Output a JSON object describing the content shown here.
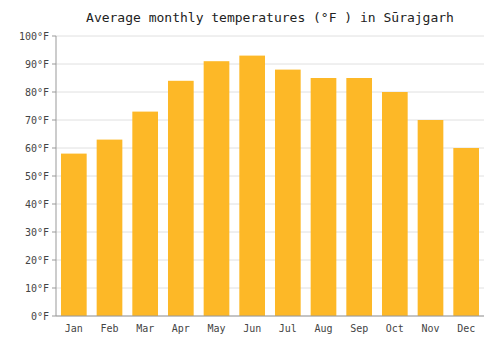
{
  "chart_data": {
    "type": "bar",
    "title": "Average monthly temperatures (°F ) in Sūrajgarh",
    "categories": [
      "Jan",
      "Feb",
      "Mar",
      "Apr",
      "May",
      "Jun",
      "Jul",
      "Aug",
      "Sep",
      "Oct",
      "Nov",
      "Dec"
    ],
    "values": [
      58,
      63,
      73,
      84,
      91,
      93,
      88,
      85,
      85,
      80,
      70,
      60
    ],
    "color": "#FDB827",
    "ylim": [
      0,
      100
    ],
    "yticks": [
      {
        "value": 0,
        "label": "0°F"
      },
      {
        "value": 10,
        "label": "10°F"
      },
      {
        "value": 20,
        "label": "20°F"
      },
      {
        "value": 30,
        "label": "30°F"
      },
      {
        "value": 40,
        "label": "40°F"
      },
      {
        "value": 50,
        "label": "50°F"
      },
      {
        "value": 60,
        "label": "60°F"
      },
      {
        "value": 70,
        "label": "70°F"
      },
      {
        "value": 80,
        "label": "80°F"
      },
      {
        "value": 90,
        "label": "90°F"
      },
      {
        "value": 100,
        "label": "100°F"
      }
    ],
    "grid": true
  }
}
